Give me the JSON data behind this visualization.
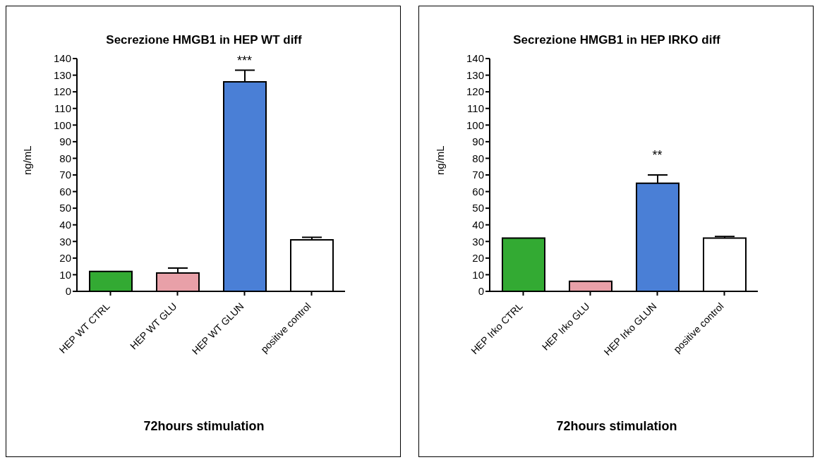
{
  "chart_data": [
    {
      "type": "bar",
      "title": "Secrezione HMGB1 in HEP WT diff",
      "xlabel": "72hours stimulation",
      "ylabel": "ng/mL",
      "categories": [
        "HEP WT CTRL",
        "HEP WT GLU",
        "HEP WT GLUN",
        "positive control"
      ],
      "values": [
        12,
        11,
        126,
        31
      ],
      "errors": [
        null,
        [
          11,
          14
        ],
        [
          126,
          133
        ],
        [
          31,
          32.5
        ]
      ],
      "colors": [
        "#33aa33",
        "#e8a0a8",
        "#4a7fd6",
        "#ffffff"
      ],
      "ylim": [
        0,
        140
      ],
      "yticks": [
        0,
        10,
        20,
        30,
        40,
        50,
        60,
        70,
        80,
        90,
        100,
        110,
        120,
        130,
        140
      ],
      "grid": false,
      "legend": false,
      "annotations": [
        {
          "text": "***",
          "x": "HEP WT GLUN",
          "y": 133
        }
      ]
    },
    {
      "type": "bar",
      "title": "Secrezione HMGB1 in HEP IRKO diff",
      "xlabel": "72hours stimulation",
      "ylabel": "ng/mL",
      "categories": [
        "HEP Irko CTRL",
        "HEP Irko GLU",
        "HEP Irko GLUN",
        "positive control"
      ],
      "values": [
        32,
        6,
        65,
        32
      ],
      "errors": [
        null,
        null,
        [
          65,
          70
        ],
        [
          32,
          33
        ]
      ],
      "colors": [
        "#33aa33",
        "#e8a0a8",
        "#4a7fd6",
        "#ffffff"
      ],
      "ylim": [
        0,
        140
      ],
      "yticks": [
        0,
        10,
        20,
        30,
        40,
        50,
        60,
        70,
        80,
        90,
        100,
        110,
        120,
        130,
        140
      ],
      "grid": false,
      "legend": false,
      "annotations": [
        {
          "text": "**",
          "x": "HEP Irko GLUN",
          "y": 70
        }
      ]
    }
  ]
}
